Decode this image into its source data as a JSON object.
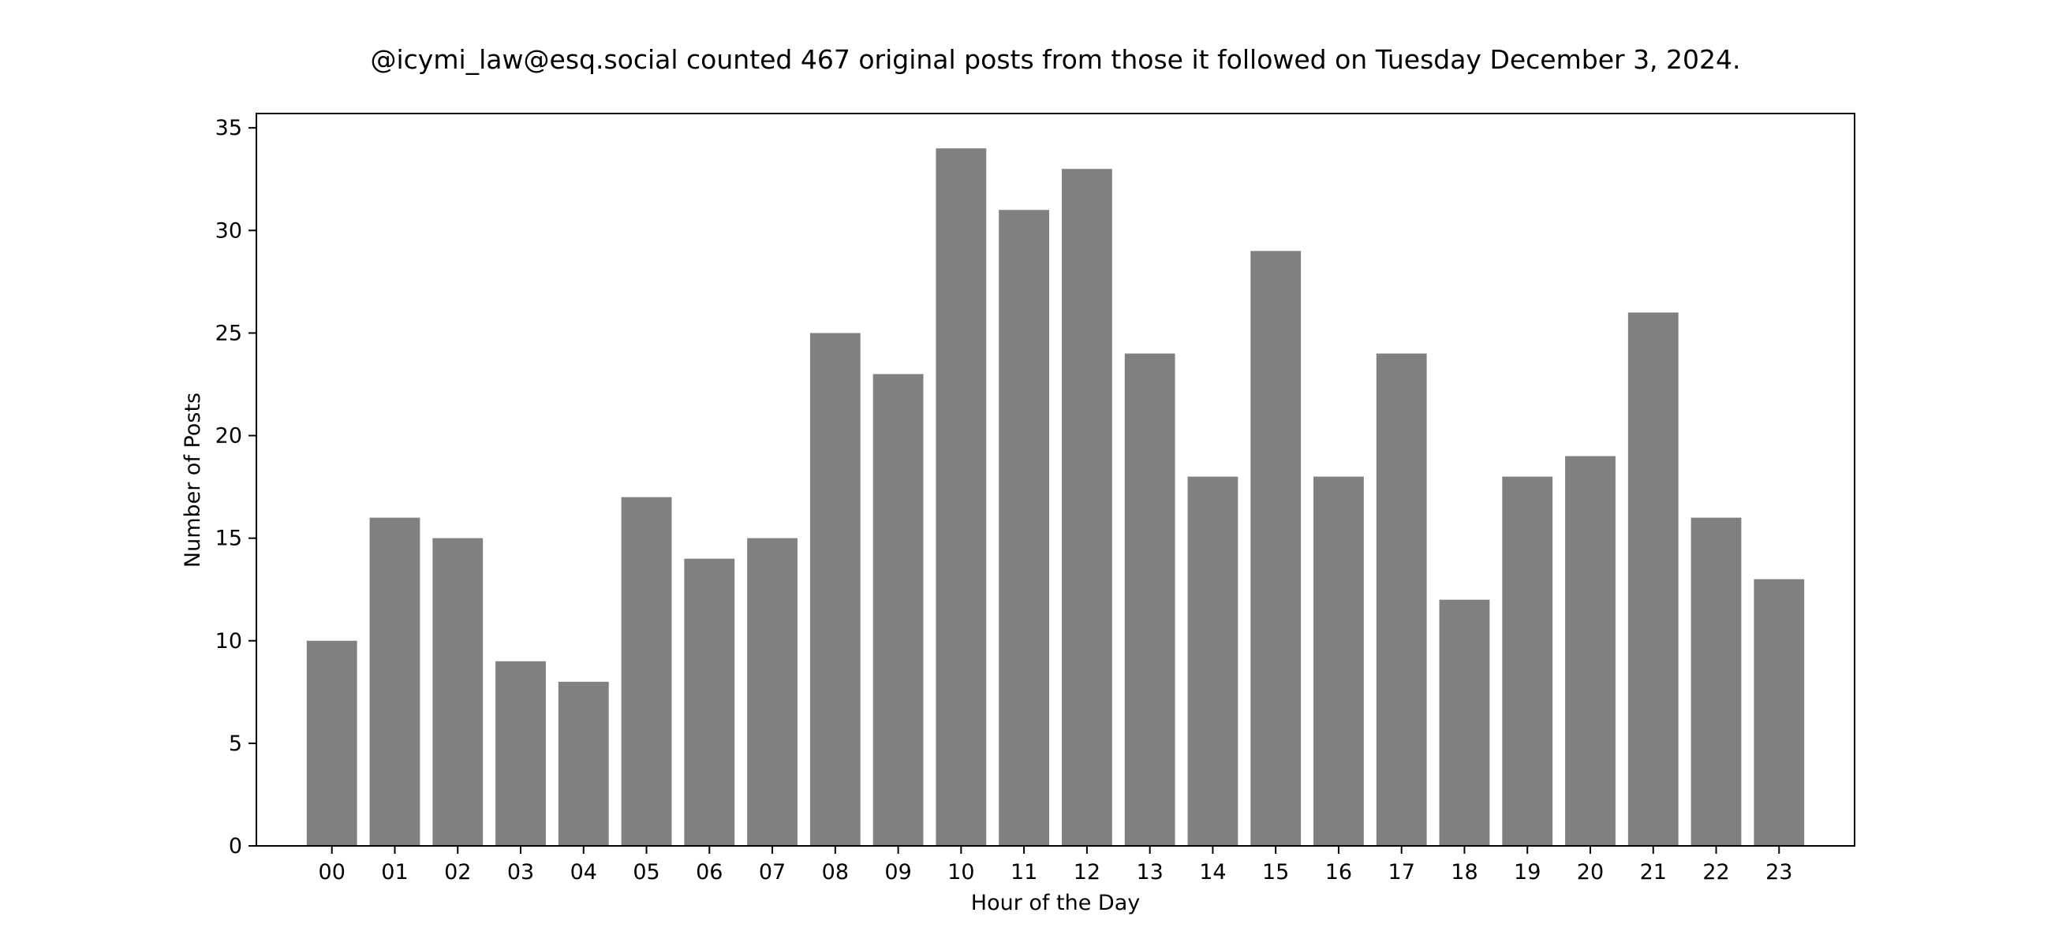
{
  "chart_data": {
    "type": "bar",
    "title": "@icymi_law@esq.social counted 467 original posts from those it followed on Tuesday December 3, 2024.",
    "xlabel": "Hour of the Day",
    "ylabel": "Number of Posts",
    "categories": [
      "00",
      "01",
      "02",
      "03",
      "04",
      "05",
      "06",
      "07",
      "08",
      "09",
      "10",
      "11",
      "12",
      "13",
      "14",
      "15",
      "16",
      "17",
      "18",
      "19",
      "20",
      "21",
      "22",
      "23"
    ],
    "values": [
      10,
      16,
      15,
      9,
      8,
      17,
      14,
      15,
      25,
      23,
      34,
      31,
      33,
      24,
      18,
      29,
      18,
      24,
      12,
      18,
      19,
      26,
      16,
      13
    ],
    "ylim": [
      0,
      35.7
    ],
    "yticks": [
      0,
      5,
      10,
      15,
      20,
      25,
      30,
      35
    ],
    "grid": false,
    "legend": "none",
    "bar_color": "#808080"
  }
}
